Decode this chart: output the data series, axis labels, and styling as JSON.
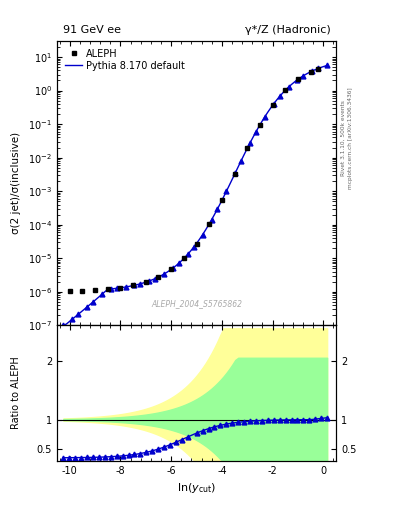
{
  "title_left": "91 GeV ee",
  "title_right": "γ*/Z (Hadronic)",
  "ylabel_main": "σ(2 jet)/σ(inclusive)",
  "ylabel_ratio": "Ratio to ALEPH",
  "xlabel": "ln(y_{cut})",
  "right_label_top": "Rivet 3.1.10, 500k events",
  "right_label_bot": "mcplots.cern.ch [arXiv:1306.3436]",
  "watermark": "ALEPH_2004_S5765862",
  "legend_entries": [
    "ALEPH",
    "Pythia 8.170 default"
  ],
  "xlim": [
    -10.5,
    0.5
  ],
  "main_color": "#000000",
  "pythia_color": "#0000cc",
  "band_yellow": "#ffff99",
  "band_green": "#99ff99"
}
